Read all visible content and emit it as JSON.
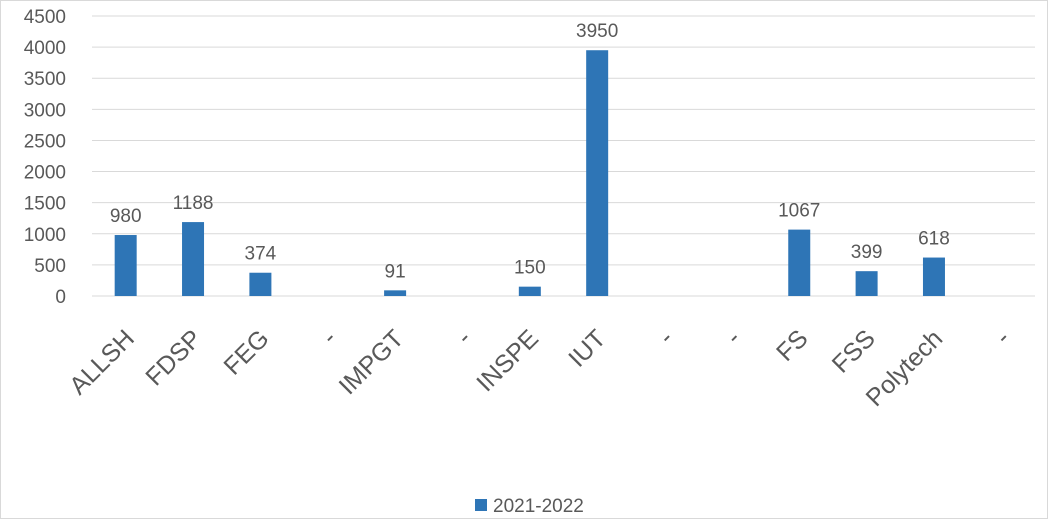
{
  "chart_data": {
    "type": "bar",
    "categories": [
      "ALLSH",
      "FDSP",
      "FEG",
      "-",
      "IMPGT",
      "-",
      "INSPE",
      "IUT",
      "-",
      "-",
      "FS",
      "FSS",
      "Polytech",
      "-"
    ],
    "series": [
      {
        "name": "2021-2022",
        "values": [
          980,
          1188,
          374,
          null,
          91,
          null,
          150,
          3950,
          null,
          null,
          1067,
          399,
          618,
          null
        ],
        "color": "#2e75b6"
      }
    ],
    "data_labels": [
      "980",
      "1188",
      "374",
      "",
      "91",
      "",
      "150",
      "3950",
      "",
      "",
      "1067",
      "399",
      "618",
      ""
    ],
    "ylim": [
      0,
      4500
    ],
    "yticks": [
      0,
      500,
      1000,
      1500,
      2000,
      2500,
      3000,
      3500,
      4000,
      4500
    ],
    "grid": true,
    "legend_position": "bottom",
    "title": "",
    "xlabel": "",
    "ylabel": ""
  }
}
